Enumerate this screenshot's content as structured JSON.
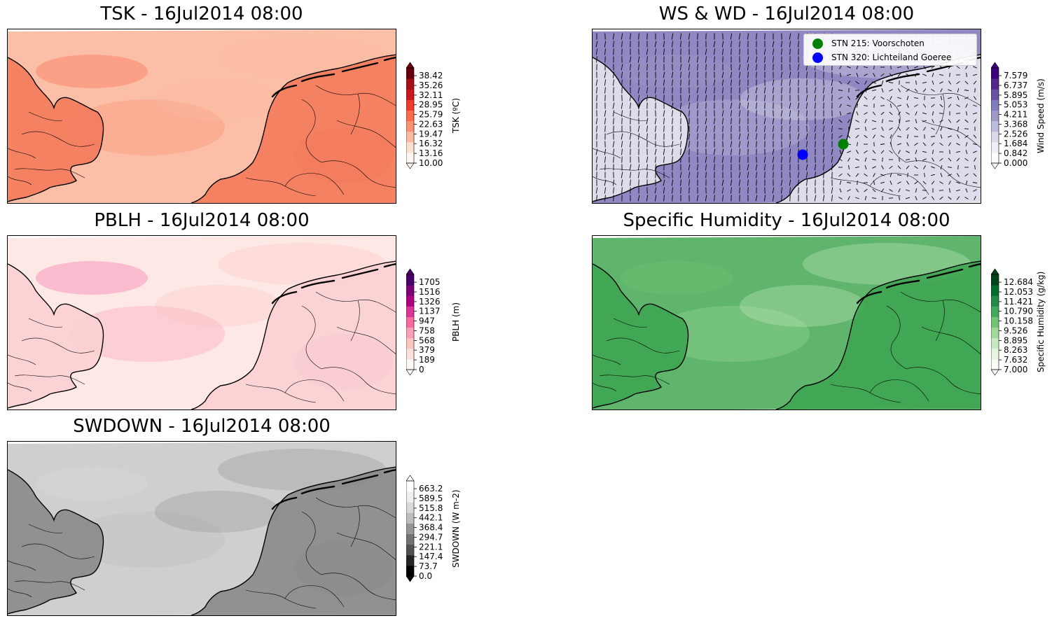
{
  "panels": [
    {
      "id": "tsk",
      "title": "TSK - 16Jul2014 08:00",
      "cbar_label": "TSK (ºC)",
      "ticks": [
        "10.00",
        "13.16",
        "16.32",
        "19.47",
        "22.63",
        "25.79",
        "28.95",
        "32.11",
        "35.26",
        "38.42"
      ],
      "extend_top": true,
      "extend_bottom": true,
      "colors": [
        "#fff5f0",
        "#fee0d2",
        "#fcbba1",
        "#fc9272",
        "#fb6a4a",
        "#ef3b2c",
        "#cb181d",
        "#a50f15",
        "#67000d"
      ],
      "sea_color": "#fbbea6",
      "land_color": "#f47a5c"
    },
    {
      "id": "ws",
      "title": "WS & WD - 16Jul2014 08:00",
      "cbar_label": "Wind Speed (m/s)",
      "ticks": [
        "0.000",
        "0.842",
        "1.684",
        "2.526",
        "3.368",
        "4.211",
        "5.053",
        "5.895",
        "6.737",
        "7.579"
      ],
      "extend_top": true,
      "extend_bottom": true,
      "colors": [
        "#fcfbfd",
        "#efedf5",
        "#dadaeb",
        "#bcbddc",
        "#9e9ac8",
        "#807dba",
        "#6a51a3",
        "#54278f",
        "#3f007d"
      ],
      "sea_color": "#8f88c2",
      "land_color": "#e6e5f0"
    },
    {
      "id": "pblh",
      "title": "PBLH - 16Jul2014 08:00",
      "cbar_label": "PBLH (m)",
      "ticks": [
        "0",
        "189",
        "379",
        "568",
        "758",
        "947",
        "1137",
        "1326",
        "1516",
        "1705"
      ],
      "extend_top": true,
      "extend_bottom": true,
      "colors": [
        "#fff7f3",
        "#fde0dd",
        "#fcc5c0",
        "#fa9fb5",
        "#f768a1",
        "#dd3497",
        "#ae017e",
        "#7a0177",
        "#49006a"
      ],
      "sea_color": "#fde8e6",
      "land_color": "#fbd0d3"
    },
    {
      "id": "q",
      "title": "Specific Humidity - 16Jul2014 08:00",
      "cbar_label": "Specific Humidity (g/kg)",
      "ticks": [
        "7.000",
        "7.632",
        "8.263",
        "8.895",
        "9.526",
        "10.158",
        "10.790",
        "11.421",
        "12.053",
        "12.684"
      ],
      "extend_top": true,
      "extend_bottom": true,
      "colors": [
        "#f7fcf5",
        "#e5f5e0",
        "#c7e9c0",
        "#a1d99b",
        "#74c476",
        "#41ab5d",
        "#238b45",
        "#006d2c",
        "#00441b"
      ],
      "sea_color": "#5fb56b",
      "land_color": "#3ea552"
    },
    {
      "id": "sw",
      "title": "SWDOWN - 16Jul2014 08:00",
      "cbar_label": "SWDOWN (W m-2)",
      "ticks": [
        "0.0",
        "73.7",
        "147.4",
        "221.1",
        "294.7",
        "368.4",
        "442.1",
        "515.8",
        "589.5",
        "663.2"
      ],
      "extend_top": true,
      "extend_bottom": true,
      "colors": [
        "#000000",
        "#252525",
        "#525252",
        "#737373",
        "#969696",
        "#bdbdbd",
        "#d9d9d9",
        "#f0f0f0",
        "#ffffff"
      ],
      "sea_color": "#cfcfcf",
      "land_color": "#8a8a8a"
    }
  ],
  "legend": {
    "items": [
      {
        "label": "STN 215: Voorschoten",
        "color": "#008000"
      },
      {
        "label": "STN 320: Lichteiland Goeree",
        "color": "#0000ff"
      }
    ]
  }
}
